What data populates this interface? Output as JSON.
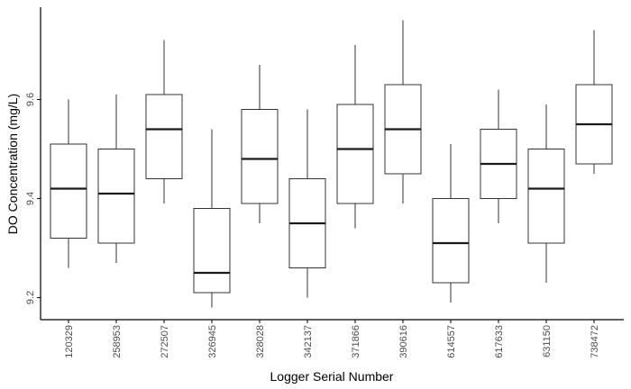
{
  "chart_data": {
    "type": "boxplot",
    "title": "",
    "xlabel": "Logger Serial Number",
    "ylabel": "DO Concentration (mg/L)",
    "ylim": [
      9.17,
      9.77
    ],
    "yticks": [
      9.2,
      9.4,
      9.6
    ],
    "ytick_labels": [
      "9.2",
      "9.4",
      "9.6"
    ],
    "grid": false,
    "categories": [
      "120329",
      "258953",
      "272507",
      "326945",
      "328028",
      "342137",
      "371866",
      "390616",
      "614557",
      "617633",
      "631150",
      "738472"
    ],
    "boxes": [
      {
        "min": 9.26,
        "q1": 9.32,
        "median": 9.42,
        "q3": 9.51,
        "max": 9.6
      },
      {
        "min": 9.27,
        "q1": 9.31,
        "median": 9.41,
        "q3": 9.5,
        "max": 9.61
      },
      {
        "min": 9.39,
        "q1": 9.44,
        "median": 9.54,
        "q3": 9.61,
        "max": 9.72
      },
      {
        "min": 9.18,
        "q1": 9.21,
        "median": 9.25,
        "q3": 9.38,
        "max": 9.54
      },
      {
        "min": 9.35,
        "q1": 9.39,
        "median": 9.48,
        "q3": 9.58,
        "max": 9.67
      },
      {
        "min": 9.2,
        "q1": 9.26,
        "median": 9.35,
        "q3": 9.44,
        "max": 9.58
      },
      {
        "min": 9.34,
        "q1": 9.39,
        "median": 9.5,
        "q3": 9.59,
        "max": 9.71
      },
      {
        "min": 9.39,
        "q1": 9.45,
        "median": 9.54,
        "q3": 9.63,
        "max": 9.76
      },
      {
        "min": 9.19,
        "q1": 9.23,
        "median": 9.31,
        "q3": 9.4,
        "max": 9.51
      },
      {
        "min": 9.35,
        "q1": 9.4,
        "median": 9.47,
        "q3": 9.54,
        "max": 9.62
      },
      {
        "min": 9.23,
        "q1": 9.31,
        "median": 9.42,
        "q3": 9.5,
        "max": 9.59
      },
      {
        "min": 9.45,
        "q1": 9.47,
        "median": 9.55,
        "q3": 9.63,
        "max": 9.74
      }
    ]
  }
}
